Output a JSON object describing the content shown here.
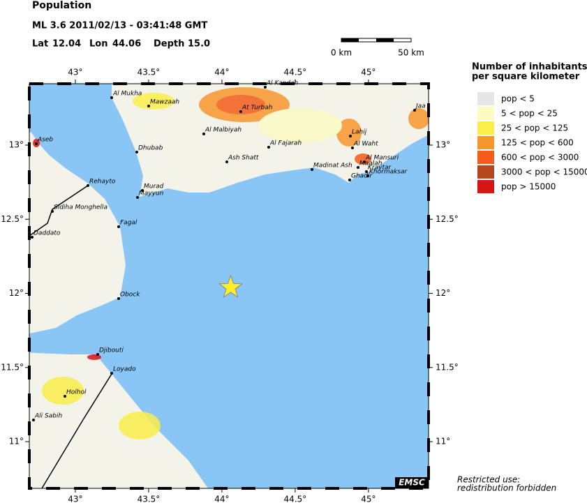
{
  "header": {
    "title": "Population",
    "event": "ML 3.6  2011/02/13 - 03:41:48 GMT",
    "lat_label": "Lat",
    "lat": 12.04,
    "lon_label": "Lon",
    "lon": 44.06,
    "depth_label": "Depth",
    "depth": {
      "value": 15,
      "label": "15.0"
    }
  },
  "scale_bar": {
    "start": "0 km",
    "end": "50 km"
  },
  "map": {
    "xlim": [
      42.686,
      45.41
    ],
    "ylim": [
      10.685,
      13.414
    ],
    "xticks": [
      {
        "value": 43,
        "label": "43°"
      },
      {
        "value": 43.5,
        "label": "43.5°"
      },
      {
        "value": 44,
        "label": "44°"
      },
      {
        "value": 44.5,
        "label": "44.5°"
      },
      {
        "value": 45,
        "label": "45°"
      }
    ],
    "yticks": [
      {
        "value": 11,
        "label": "11°"
      },
      {
        "value": 11.5,
        "label": "11.5°"
      },
      {
        "value": 12,
        "label": "12°"
      },
      {
        "value": 12.5,
        "label": "12.5°"
      },
      {
        "value": 13,
        "label": "13°"
      }
    ],
    "cities": [
      "Al Mukha",
      "Mawzaah",
      "Al Kandah",
      "At Turbah",
      "Jaa",
      "Lahij",
      "Al Malbiyah",
      "Al Fajarah",
      "Al Waht",
      "Aseb",
      "Dhubab",
      "Ash Shatt",
      "Al Mansuri",
      "Madinat Ash",
      "Maalah",
      "Kraytar",
      "Khormaksar",
      "Ghadir",
      "Rehayto",
      "Murad",
      "Mayyun",
      "Sidiha Monghella",
      "Fagal",
      "Daddato",
      "Obock",
      "Djibouti",
      "Loyado",
      "Holhol",
      "Ali Sabih"
    ],
    "brand": "EMSC"
  },
  "legend": {
    "title": [
      "Number of inhabitants",
      "per square kilometer"
    ],
    "items": [
      {
        "label": "pop < 5",
        "color": "#e6e6e6"
      },
      {
        "label": "5 < pop < 25",
        "color": "#fbfbc4"
      },
      {
        "label": "25 < pop < 125",
        "color": "#fbee4a"
      },
      {
        "label": "125 < pop < 600",
        "color": "#f8962e"
      },
      {
        "label": "600 < pop < 3000",
        "color": "#f45c1c"
      },
      {
        "label": "3000 < pop < 15000",
        "color": "#b8461c"
      },
      {
        "label": "pop > 15000",
        "color": "#d81414"
      }
    ]
  },
  "notice": [
    "Restricted use:",
    "redistribution forbidden"
  ]
}
